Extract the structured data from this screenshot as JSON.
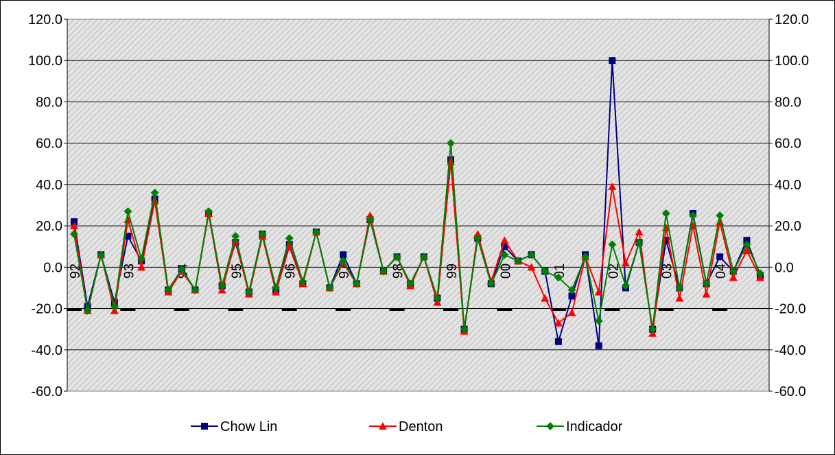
{
  "chart_data": {
    "type": "line",
    "title": "",
    "xlabel": "",
    "ylabel": "",
    "ylim": [
      -60,
      120
    ],
    "y_ticks": [
      -60,
      -40,
      -20,
      0,
      20,
      40,
      60,
      80,
      100,
      120
    ],
    "y_tick_labels": [
      "-60.0",
      "-40.0",
      "-20.0",
      "0.0",
      "20.0",
      "40.0",
      "60.0",
      "80.0",
      "100.0",
      "120.0"
    ],
    "secondary_axis": true,
    "grid": "horizontal",
    "plot_background": "hatched-gray",
    "legend_position": "bottom",
    "year_labels": [
      {
        "label": "92",
        "index": 0
      },
      {
        "label": "93",
        "index": 4
      },
      {
        "label": "94",
        "index": 8
      },
      {
        "label": "95",
        "index": 12
      },
      {
        "label": "96",
        "index": 16
      },
      {
        "label": "97",
        "index": 20
      },
      {
        "label": "98",
        "index": 24
      },
      {
        "label": "99",
        "index": 28
      },
      {
        "label": "00",
        "index": 32
      },
      {
        "label": "01",
        "index": 36
      },
      {
        "label": "02",
        "index": 40
      },
      {
        "label": "03",
        "index": 44
      },
      {
        "label": "04",
        "index": 48
      }
    ],
    "series": [
      {
        "name": "Chow Lin",
        "color": "#000080",
        "marker": "square",
        "values": [
          22,
          -19,
          6,
          -17,
          15,
          3,
          33,
          -11,
          -1,
          -11,
          26,
          -9,
          12,
          -12,
          16,
          -11,
          11,
          -8,
          17,
          -10,
          6,
          -8,
          23,
          -2,
          5,
          -8,
          5,
          -15,
          52,
          -30,
          14,
          -8,
          10,
          3,
          6,
          -2,
          -36,
          -14,
          6,
          -38,
          100,
          -10,
          12,
          -30,
          13,
          -10,
          26,
          -8,
          5,
          -2,
          13,
          -4
        ]
      },
      {
        "name": "Denton",
        "color": "#FF0000",
        "marker": "triangle",
        "values": [
          20,
          -21,
          6,
          -21,
          23,
          0,
          32,
          -12,
          -2,
          -11,
          26,
          -11,
          13,
          -13,
          15,
          -12,
          10,
          -8,
          17,
          -10,
          2,
          -8,
          25,
          -2,
          5,
          -9,
          5,
          -17,
          51,
          -31,
          16,
          -7,
          13,
          3,
          0,
          -15,
          -27,
          -22,
          5,
          -12,
          39,
          2,
          17,
          -32,
          19,
          -15,
          20,
          -13,
          22,
          -5,
          8,
          -5
        ]
      },
      {
        "name": "Indicador",
        "color": "#008000",
        "marker": "diamond",
        "values": [
          16,
          -21,
          6,
          -19,
          27,
          4,
          36,
          -11,
          -1,
          -11,
          27,
          -9,
          15,
          -12,
          16,
          -10,
          14,
          -7,
          17,
          -10,
          3,
          -8,
          23,
          -2,
          5,
          -8,
          5,
          -15,
          60,
          -30,
          14,
          -8,
          6,
          3,
          6,
          -2,
          -5,
          -11,
          5,
          -26,
          11,
          -9,
          12,
          -30,
          26,
          -10,
          25,
          -8,
          25,
          -2,
          11,
          -3
        ]
      }
    ]
  }
}
